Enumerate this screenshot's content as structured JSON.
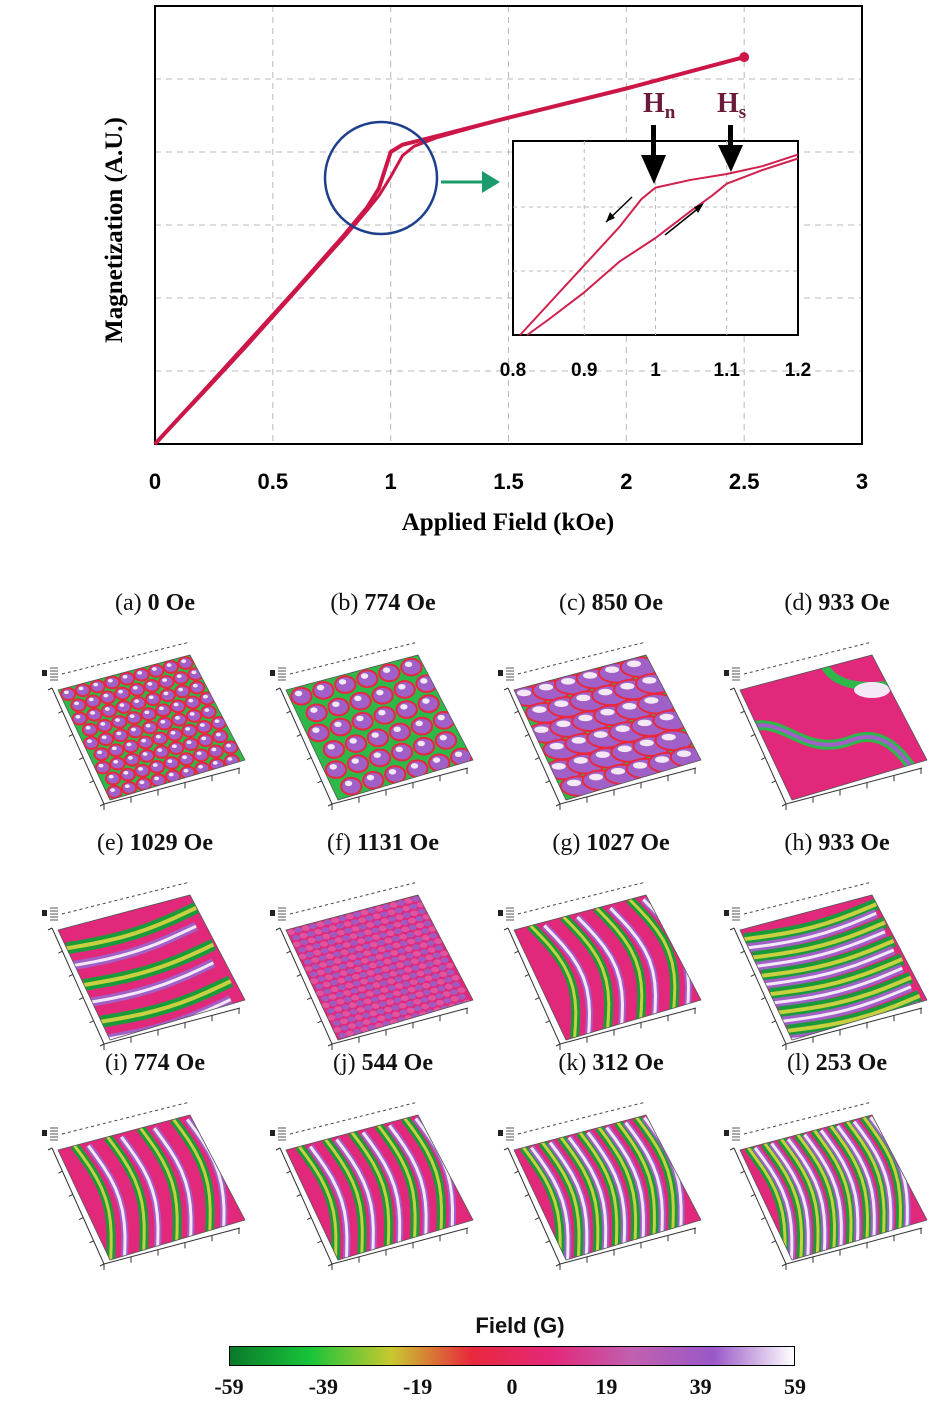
{
  "chart_data": [
    {
      "type": "line",
      "title": "",
      "xlabel": "Applied Field (kOe)",
      "ylabel": "Magnetization (A.U.)",
      "xlim": [
        0,
        3
      ],
      "ylim": [
        0,
        6
      ],
      "x_ticks": [
        "0",
        "0.5",
        "1",
        "1.5",
        "2",
        "2.5",
        "3"
      ],
      "grid": true,
      "series": [
        {
          "name": "",
          "x": [
            0,
            0.2,
            0.4,
            0.6,
            0.8,
            0.9,
            0.95,
            1.0,
            1.05,
            1.1,
            1.2,
            1.5,
            2.0,
            2.5
          ],
          "y": [
            0,
            0.7,
            1.41,
            2.12,
            2.85,
            3.24,
            3.5,
            4.0,
            4.1,
            4.14,
            4.22,
            4.47,
            4.87,
            5.3
          ]
        },
        {
          "name": "",
          "x": [
            0,
            0.2,
            0.4,
            0.6,
            0.8,
            0.9,
            0.95,
            1.0,
            1.05,
            1.1,
            1.2,
            1.5,
            2.0,
            2.5
          ],
          "y": [
            0,
            0.68,
            1.38,
            2.1,
            2.82,
            3.2,
            3.4,
            3.66,
            3.95,
            4.08,
            4.2,
            4.47,
            4.87,
            5.3
          ]
        }
      ]
    },
    {
      "type": "line",
      "title": "",
      "xlim": [
        0.8,
        1.2
      ],
      "x_ticks": [
        "0.8",
        "0.9",
        "1",
        "1.1",
        "1.2"
      ],
      "grid": true,
      "annotations": [
        {
          "label": "H",
          "sub": "n",
          "x": 1.0
        },
        {
          "label": "H",
          "sub": "s",
          "x": 1.1
        }
      ],
      "series": [
        {
          "name": "",
          "x": [
            0.81,
            0.85,
            0.9,
            0.95,
            0.98,
            1.0,
            1.05,
            1.1,
            1.15,
            1.2
          ],
          "y": [
            0.0,
            0.16,
            0.36,
            0.56,
            0.7,
            0.76,
            0.8,
            0.83,
            0.87,
            0.93
          ]
        },
        {
          "name": "",
          "x": [
            0.82,
            0.85,
            0.9,
            0.95,
            1.0,
            1.05,
            1.08,
            1.1,
            1.15,
            1.2
          ],
          "y": [
            0.0,
            0.08,
            0.22,
            0.38,
            0.5,
            0.64,
            0.72,
            0.78,
            0.85,
            0.91
          ]
        }
      ]
    }
  ],
  "panels": [
    {
      "letter": "(a)",
      "field": "0 Oe",
      "pattern": "bubbles-small"
    },
    {
      "letter": "(b)",
      "field": "774 Oe",
      "pattern": "bubbles-large"
    },
    {
      "letter": "(c)",
      "field": "850 Oe",
      "pattern": "bubbles-elongated"
    },
    {
      "letter": "(d)",
      "field": "933 Oe",
      "pattern": "loops"
    },
    {
      "letter": "(e)",
      "field": "1029 Oe",
      "pattern": "bands-wide"
    },
    {
      "letter": "(f)",
      "field": "1131 Oe",
      "pattern": "saturated"
    },
    {
      "letter": "(g)",
      "field": "1027 Oe",
      "pattern": "curved-stripes"
    },
    {
      "letter": "(h)",
      "field": "933 Oe",
      "pattern": "horizontal-stripes"
    },
    {
      "letter": "(i)",
      "field": "774 Oe",
      "pattern": "stripes-4"
    },
    {
      "letter": "(j)",
      "field": "544 Oe",
      "pattern": "stripes-5"
    },
    {
      "letter": "(k)",
      "field": "312 Oe",
      "pattern": "stripes-7"
    },
    {
      "letter": "(l)",
      "field": "253 Oe",
      "pattern": "stripes-8"
    }
  ],
  "colorbar": {
    "title": "Field (G)",
    "ticks": [
      "-59",
      "-39",
      "-19",
      "0",
      "19",
      "39",
      "59"
    ],
    "range": [
      -59,
      59
    ],
    "colors": [
      "#0a7a2a",
      "#19c43a",
      "#c8c830",
      "#e8283c",
      "#e4287a",
      "#c060b0",
      "#9a58c8",
      "#ffffff"
    ]
  }
}
